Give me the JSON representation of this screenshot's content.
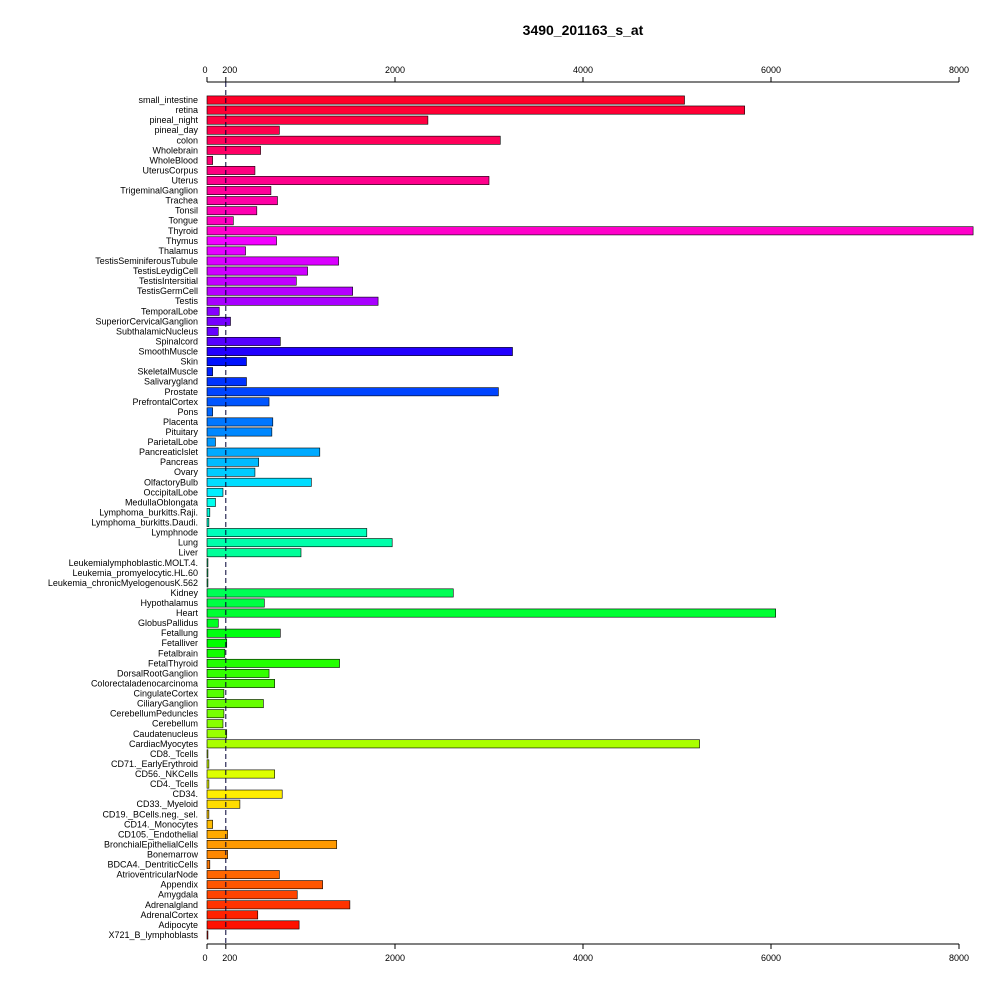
{
  "chart_data": {
    "type": "bar",
    "orientation": "horizontal",
    "title": "3490_201163_s_at",
    "xlabel": "",
    "ylabel": "",
    "xlim": [
      0,
      8000
    ],
    "ticks": [
      0,
      200,
      2000,
      4000,
      6000,
      8000
    ],
    "tick_labels": [
      "0",
      "200",
      "2000",
      "4000",
      "6000",
      "8000"
    ],
    "reference_line": 200,
    "grid": false,
    "legend": "none",
    "categories": [
      "small_intestine",
      "retina",
      "pineal_night",
      "pineal_day",
      "colon",
      "Wholebrain",
      "WholeBlood",
      "UterusCorpus",
      "Uterus",
      "TrigeminalGanglion",
      "Trachea",
      "Tonsil",
      "Tongue",
      "Thyroid",
      "Thymus",
      "Thalamus",
      "TestisSeminiferousTubule",
      "TestisLeydigCell",
      "TestisIntersitial",
      "TestisGermCell",
      "Testis",
      "TemporalLobe",
      "SuperiorCervicalGanglion",
      "SubthalamicNucleus",
      "Spinalcord",
      "SmoothMuscle",
      "Skin",
      "SkeletalMuscle",
      "Salivarygland",
      "Prostate",
      "PrefrontalCortex",
      "Pons",
      "Placenta",
      "Pituitary",
      "ParietalLobe",
      "PancreaticIslet",
      "Pancreas",
      "Ovary",
      "OlfactoryBulb",
      "OccipitalLobe",
      "MedullaOblongata",
      "Lymphoma_burkitts.Raji.",
      "Lymphoma_burkitts.Daudi.",
      "Lymphnode",
      "Lung",
      "Liver",
      "Leukemialymphoblastic.MOLT.4.",
      "Leukemia_promyelocytic.HL.60",
      "Leukemia_chronicMyelogenousK.562",
      "Kidney",
      "Hypothalamus",
      "Heart",
      "GlobusPallidus",
      "Fetallung",
      "Fetalliver",
      "Fetalbrain",
      "FetalThyroid",
      "DorsalRootGanglion",
      "Colorectaladenocarcinoma",
      "CingulateCortex",
      "CiliaryGanglion",
      "CerebellumPeduncles",
      "Cerebellum",
      "Caudatenucleus",
      "CardiacMyocytes",
      "CD8._Tcells",
      "CD71._EarlyErythroid",
      "CD56._NKCells",
      "CD4._Tcells",
      "CD34.",
      "CD33._Myeloid",
      "CD19._BCells.neg._sel.",
      "CD14._Monocytes",
      "CD105._Endothelial",
      "BronchialEpithelialCells",
      "Bonemarrow",
      "BDCA4._DentriticCells",
      "AtrioventricularNode",
      "Appendix",
      "Amygdala",
      "Adrenalgland",
      "AdrenalCortex",
      "Adipocyte",
      "X721_B_lymphoblasts"
    ],
    "values": [
      5080,
      5720,
      2350,
      770,
      3120,
      570,
      60,
      510,
      3000,
      680,
      750,
      530,
      280,
      8150,
      740,
      410,
      1400,
      1070,
      950,
      1550,
      1820,
      130,
      250,
      120,
      780,
      3250,
      420,
      60,
      420,
      3100,
      660,
      60,
      700,
      690,
      90,
      1200,
      550,
      510,
      1110,
      170,
      90,
      30,
      20,
      1700,
      1970,
      1000,
      10,
      10,
      10,
      2620,
      610,
      6050,
      120,
      780,
      210,
      190,
      1410,
      660,
      720,
      180,
      600,
      180,
      170,
      210,
      5240,
      10,
      20,
      720,
      20,
      800,
      350,
      20,
      60,
      220,
      1380,
      220,
      30,
      770,
      1230,
      960,
      1520,
      540,
      980,
      10
    ],
    "colors": [
      "#FF0028",
      "#FF0035",
      "#FF0041",
      "#FF004D",
      "#FF005A",
      "#FF0066",
      "#FF0073",
      "#FF007F",
      "#FF008C",
      "#FF0098",
      "#FF00A4",
      "#FF00B1",
      "#FF00BD",
      "#FF00CA",
      "#F300FF",
      "#E600FF",
      "#DA00FF",
      "#CE00FF",
      "#C100FF",
      "#B500FF",
      "#A800FF",
      "#8600FF",
      "#7600FF",
      "#6500FF",
      "#5500FF",
      "#2200FF",
      "#0011FF",
      "#0022FF",
      "#0033FF",
      "#0044FF",
      "#0055FF",
      "#0066FF",
      "#0077FF",
      "#0088FF",
      "#0099FF",
      "#00AAFF",
      "#00BBFF",
      "#00CCFF",
      "#00DDFF",
      "#00EEFF",
      "#00FFEE",
      "#00FFDD",
      "#00FFCC",
      "#00FFBB",
      "#00FFAA",
      "#00FF99",
      "#00FF88",
      "#00FF77",
      "#00FF66",
      "#00FF55",
      "#00FF44",
      "#00FF33",
      "#00FF22",
      "#00FF11",
      "#00FF00",
      "#11FF00",
      "#22FF00",
      "#33FF00",
      "#44FF00",
      "#55FF00",
      "#66FF00",
      "#77FF00",
      "#88FF00",
      "#99FF00",
      "#AAFF00",
      "#BBFF00",
      "#CCFF00",
      "#DDFF00",
      "#EEFF00",
      "#FFEE00",
      "#FFDD00",
      "#FFCC00",
      "#FFBB00",
      "#FFAA00",
      "#FF9900",
      "#FF8800",
      "#FF7700",
      "#FF6600",
      "#FF5500",
      "#FF4400",
      "#FF3300",
      "#FF2200",
      "#FF1100",
      "#FF0000"
    ]
  }
}
